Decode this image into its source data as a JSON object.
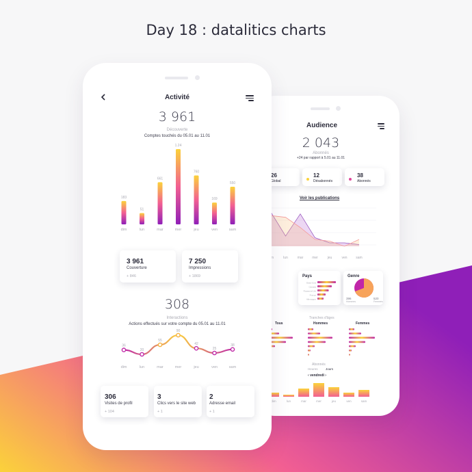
{
  "page_title": "Day 18 : datalitics charts",
  "colors": {
    "grad_top": "#fbd23a",
    "grad_mid": "#f25f92",
    "grad_bottom": "#8f1fb8",
    "text_dark": "#2b2b3a",
    "text_light": "#aaaab3"
  },
  "front": {
    "header": {
      "back_icon": "chevron-left-icon",
      "title": "Activité",
      "menu_icon": "menu-icon"
    },
    "summary": {
      "total": "3 961",
      "caption": "Découverte",
      "description": "Comptes touchés du 05.01 au 11.01"
    },
    "chart_data": {
      "type": "bar",
      "categories": [
        "dim",
        "lun",
        "mar",
        "mer",
        "jeu",
        "ven",
        "sam"
      ],
      "values": [
        183,
        51,
        661,
        1.24,
        760,
        169,
        550
      ],
      "value_labels": [
        "183",
        "51",
        "661",
        "1.24",
        "760",
        "169",
        "550"
      ],
      "bar_heights": [
        0.31,
        0.15,
        0.56,
        1.0,
        0.65,
        0.29,
        0.5
      ]
    },
    "cards": [
      {
        "value": "3 961",
        "label": "Couverture",
        "delta": "+ 846"
      },
      {
        "value": "7 250",
        "label": "Impressions",
        "delta": "+ 1869"
      }
    ],
    "interactions": {
      "total": "308",
      "caption": "Interactions",
      "description": "Actions effectués sur votre compte du 05.01 au 11.01"
    },
    "line_chart_data": {
      "type": "line",
      "categories": [
        "dim",
        "lun",
        "mar",
        "mer",
        "jeu",
        "ven",
        "sam"
      ],
      "values": [
        36,
        20,
        55,
        90,
        42,
        25,
        38
      ],
      "value_labels": [
        "36",
        "20",
        "55",
        "90",
        "42",
        "25",
        "38"
      ]
    },
    "bottom_cards": [
      {
        "value": "306",
        "label": "Visites de profil",
        "delta": "+ 104"
      },
      {
        "value": "3",
        "label": "Clics vers le site web",
        "delta": "+ 1"
      },
      {
        "value": "2",
        "label": "Adresse email",
        "delta": "+ 1"
      }
    ]
  },
  "back": {
    "header": {
      "title": "Audience",
      "menu_icon": "menu-icon"
    },
    "summary": {
      "total": "2 043",
      "caption": "Abonnés",
      "description": "+24 par rapport à 5.01 au 11.01"
    },
    "stat_cards": [
      {
        "value": "26",
        "label": "Global"
      },
      {
        "value": "12",
        "label": "Désabonnés"
      },
      {
        "value": "38",
        "label": "Abonnés"
      }
    ],
    "link": "Voir les publications",
    "area_chart_data": {
      "type": "area",
      "categories": [
        "dim",
        "lun",
        "mar",
        "mer",
        "jeu",
        "ven",
        "sam"
      ],
      "series": [
        {
          "values": [
            40,
            12,
            38,
            10,
            4,
            4,
            2
          ]
        },
        {
          "values": [
            36,
            34,
            22,
            8,
            6,
            0,
            8
          ]
        }
      ]
    },
    "pays": {
      "title": "Pays",
      "rows": [
        {
          "label": "Etats-Unis",
          "value": 0.9
        },
        {
          "label": "Canada",
          "value": 0.7
        },
        {
          "label": "Royaume-Uni",
          "value": 0.55
        },
        {
          "label": "France",
          "value": 0.4
        },
        {
          "label": "Allemagne",
          "value": 0.3
        }
      ]
    },
    "genre": {
      "title": "Genre",
      "left_value": "396",
      "left_label": "Hommes",
      "right_value": "520",
      "right_label": "Femmes"
    },
    "age": {
      "title": "Tranches d'âges",
      "groups": [
        {
          "title": "Tous",
          "values": [
            0.2,
            0.45,
            0.95,
            0.7,
            0.3,
            0.12,
            0.06
          ]
        },
        {
          "title": "Hommes",
          "values": [
            0.2,
            0.45,
            0.9,
            0.65,
            0.25,
            0.1,
            0.05
          ]
        },
        {
          "title": "Femmes",
          "values": [
            0.2,
            0.45,
            0.95,
            0.6,
            0.25,
            0.1,
            0.05
          ]
        }
      ]
    },
    "abonnes": {
      "title": "Abonnés",
      "tabs": [
        "Heures",
        "Jours"
      ],
      "day": "vendredi",
      "categories": [
        "dim",
        "lun",
        "mar",
        "mer",
        "jeu",
        "ven",
        "sam"
      ],
      "values": [
        0.3,
        0.15,
        0.6,
        1.0,
        0.7,
        0.3,
        0.5
      ]
    }
  }
}
